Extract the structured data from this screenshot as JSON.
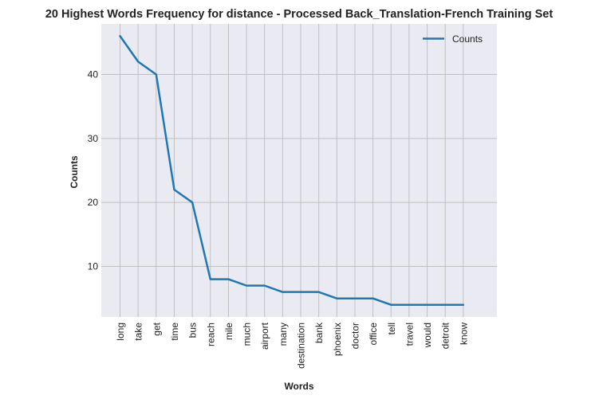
{
  "chart_data": {
    "type": "line",
    "title": "20 Highest Words Frequency for distance - Processed Back_Translation-French Training Set",
    "xlabel": "Words",
    "ylabel": "Counts",
    "categories": [
      "long",
      "take",
      "get",
      "time",
      "bus",
      "reach",
      "mile",
      "much",
      "airport",
      "many",
      "destination",
      "bank",
      "phoenix",
      "doctor",
      "office",
      "tell",
      "travel",
      "would",
      "detroit",
      "know"
    ],
    "series": [
      {
        "name": "Counts",
        "color": "#1f77b4",
        "values": [
          46,
          42,
          40,
          22,
          20,
          8,
          8,
          7,
          7,
          6,
          6,
          6,
          5,
          5,
          5,
          4,
          4,
          4,
          4,
          4
        ]
      }
    ],
    "yticks": [
      10,
      20,
      30,
      40
    ],
    "ylim": [
      2.1,
      47.9
    ],
    "grid": true,
    "legend": "top-right",
    "background": "#eaeaf2",
    "grid_color": "#c0c0c0"
  }
}
